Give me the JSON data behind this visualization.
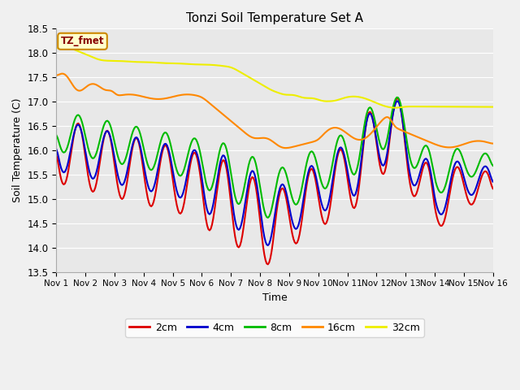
{
  "title": "Tonzi Soil Temperature Set A",
  "xlabel": "Time",
  "ylabel": "Soil Temperature (C)",
  "ylim": [
    13.5,
    18.5
  ],
  "xlim": [
    0,
    15
  ],
  "xtick_labels": [
    "Nov 1",
    "Nov 2",
    "Nov 3",
    "Nov 4",
    "Nov 5",
    "Nov 6",
    "Nov 7",
    "Nov 8",
    "Nov 9",
    "Nov 10",
    "Nov 11",
    "Nov 12",
    "Nov 13",
    "Nov 14",
    "Nov 15",
    "Nov 16"
  ],
  "background_color": "#e8e8e8",
  "grid_color": "#ffffff",
  "fig_bg": "#f0f0f0",
  "colors": {
    "2cm": "#dd0000",
    "4cm": "#0000cc",
    "8cm": "#00bb00",
    "16cm": "#ff8800",
    "32cm": "#eeee00"
  },
  "legend_label": "TZ_fmet",
  "legend_bg": "#ffffcc",
  "legend_border": "#cc8800",
  "linewidth": 1.5
}
